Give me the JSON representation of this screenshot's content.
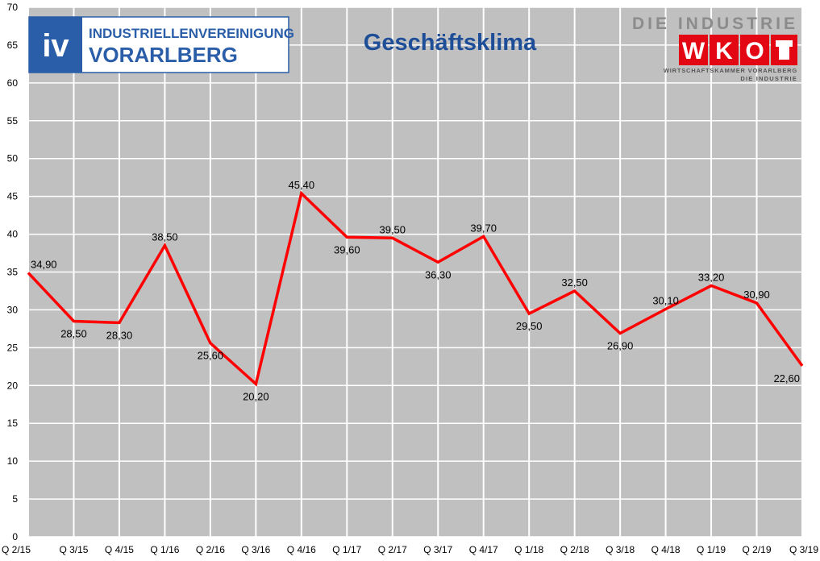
{
  "chart_data": {
    "type": "line",
    "title": "Geschäftsklima",
    "categories": [
      "Q 2/15",
      "Q 3/15",
      "Q 4/15",
      "Q 1/16",
      "Q 2/16",
      "Q 3/16",
      "Q 4/16",
      "Q 1/17",
      "Q 2/17",
      "Q 3/17",
      "Q 4/17",
      "Q 1/18",
      "Q 2/18",
      "Q 3/18",
      "Q 4/18",
      "Q 1/19",
      "Q 2/19",
      "Q 3/19"
    ],
    "values": [
      34.9,
      28.5,
      28.3,
      38.5,
      25.6,
      20.2,
      45.4,
      39.6,
      39.5,
      36.3,
      39.7,
      29.5,
      32.5,
      26.9,
      30.1,
      33.2,
      30.9,
      22.6
    ],
    "data_labels": [
      "34,90",
      "28,50",
      "28,30",
      "38,50",
      "25,60",
      "20,20",
      "45,40",
      "39,60",
      "39,50",
      "36,30",
      "39,70",
      "29,50",
      "32,50",
      "26,90",
      "30,10",
      "33,20",
      "30,90",
      "22,60"
    ],
    "yticks": [
      0,
      5,
      10,
      15,
      20,
      25,
      30,
      35,
      40,
      45,
      50,
      55,
      60,
      65,
      70
    ],
    "ylim": [
      0,
      70
    ],
    "xlabel": "",
    "ylabel": "",
    "grid": true,
    "line_color": "#ff0000",
    "plot_background": "#c0c0c0",
    "grid_color": "#ffffff"
  },
  "logos": {
    "iv": {
      "mark": "iv",
      "line1": "INDUSTRIELLENVEREINIGUNG",
      "line2": "VORARLBERG",
      "color": "#2a5ea8"
    },
    "wko": {
      "top": "DIE INDUSTRIE",
      "letters": [
        "W",
        "K",
        "O"
      ],
      "sub1": "WIRTSCHAFTSKAMMER VORARLBERG",
      "sub2": "DIE INDUSTRIE",
      "color": "#e30613"
    }
  }
}
